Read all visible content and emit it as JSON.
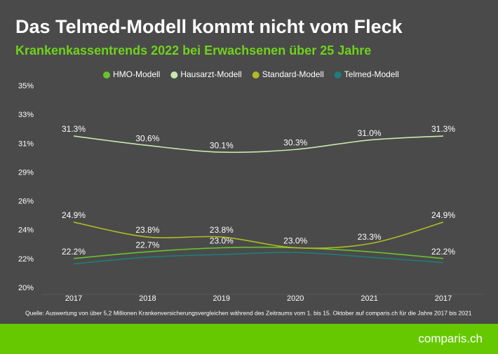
{
  "chart_data": {
    "type": "line",
    "title": "Das Telmed-Modell kommt nicht vom Fleck",
    "subtitle": "Krankenkassentrends 2022 bei Erwachsenen über 25 Jahre",
    "source": "Quelle: Auswertung von über 5,2 Millionen Krankenversicherungsvergleichen während des Zeitraums vom 1. bis 15. Oktober auf comparis.ch für die Jahre 2017 bis 2021",
    "brand": "comparis.ch",
    "categories": [
      "2017",
      "2018",
      "2019",
      "2020",
      "2021",
      "2017"
    ],
    "ylim": [
      20,
      35
    ],
    "yticks": [
      {
        "value": 20,
        "label": "20%"
      },
      {
        "value": 22.14,
        "label": "22%"
      },
      {
        "value": 24.29,
        "label": "24%"
      },
      {
        "value": 26.43,
        "label": "26%"
      },
      {
        "value": 28.57,
        "label": "29%"
      },
      {
        "value": 30.71,
        "label": "31%"
      },
      {
        "value": 32.86,
        "label": "33%"
      },
      {
        "value": 35,
        "label": "35%"
      }
    ],
    "grid": false,
    "legend": "top",
    "series": [
      {
        "name": "HMO-Modell",
        "color": "#6cc12f",
        "values": [
          22.2,
          22.7,
          23.0,
          23.0,
          22.7,
          22.2
        ],
        "value_labels": [
          "22.2%",
          "22.7%",
          "23.0%",
          null,
          null,
          "22.2%"
        ]
      },
      {
        "name": "Hausarzt-Modell",
        "color": "#c9e8ad",
        "values": [
          31.3,
          30.6,
          30.1,
          30.3,
          31.0,
          31.3
        ],
        "value_labels": [
          "31.3%",
          "30.6%",
          "30.1%",
          "30.3%",
          "31.0%",
          "31.3%"
        ]
      },
      {
        "name": "Standard-Modell",
        "color": "#adbd22",
        "values": [
          24.9,
          23.8,
          23.8,
          23.0,
          23.3,
          24.9
        ],
        "value_labels": [
          "24.9%",
          "23.8%",
          "23.8%",
          "23.0%",
          "23.3%",
          "24.9%"
        ]
      },
      {
        "name": "Telmed-Modell",
        "color": "#1f7d7a",
        "values": [
          21.8,
          22.3,
          22.5,
          22.65,
          22.3,
          21.9
        ]
      }
    ]
  }
}
